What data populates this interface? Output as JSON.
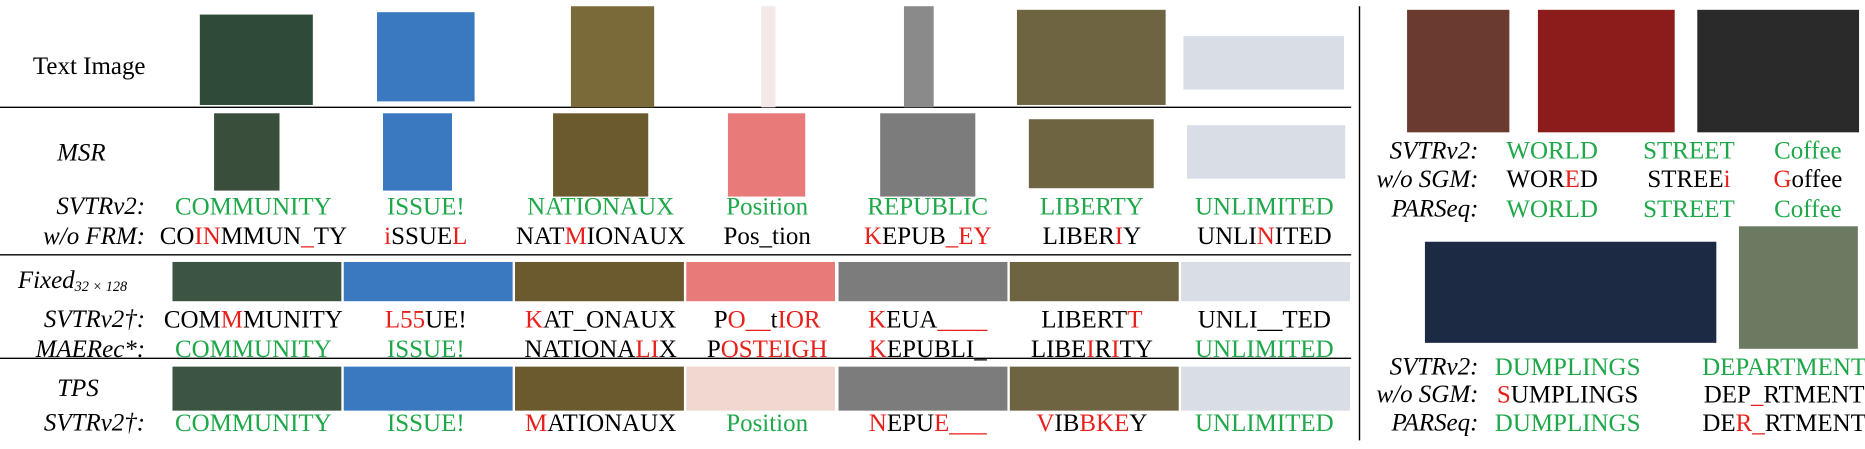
{
  "left": {
    "header_label": "Text Image",
    "sections": [
      {
        "label": "MSR",
        "rows": [
          {
            "label": "SVTRv2:",
            "cells": [
              [
                {
                  "text": "COMMUNITY",
                  "color": "#1fa84a"
                }
              ],
              [
                {
                  "text": "ISSUE!",
                  "color": "#1fa84a"
                }
              ],
              [
                {
                  "text": "NATIONAUX",
                  "color": "#1fa84a"
                }
              ],
              [
                {
                  "text": "Position",
                  "color": "#1fa84a"
                }
              ],
              [
                {
                  "text": "REPUBLIC",
                  "color": "#1fa84a"
                }
              ],
              [
                {
                  "text": "LIBERTY",
                  "color": "#1fa84a"
                }
              ],
              [
                {
                  "text": "UNLIMITED",
                  "color": "#1fa84a"
                }
              ]
            ]
          },
          {
            "label": "w/o FRM:",
            "cells": [
              [
                {
                  "text": "CO"
                },
                {
                  "text": "IN",
                  "color": "#e8201c"
                },
                {
                  "text": "MMUN"
                },
                {
                  "text": "_",
                  "color": "#e8201c"
                },
                {
                  "text": "TY"
                }
              ],
              [
                {
                  "text": "i",
                  "color": "#e8201c"
                },
                {
                  "text": "SSUE"
                },
                {
                  "text": "L",
                  "color": "#e8201c"
                }
              ],
              [
                {
                  "text": "NAT"
                },
                {
                  "text": "M",
                  "color": "#e8201c"
                },
                {
                  "text": "IONAUX"
                }
              ],
              [
                {
                  "text": "Pos_tion"
                }
              ],
              [
                {
                  "text": "K",
                  "color": "#e8201c"
                },
                {
                  "text": "EPUB"
                },
                {
                  "text": "_EY",
                  "color": "#e8201c"
                }
              ],
              [
                {
                  "text": "LIBER"
                },
                {
                  "text": "I",
                  "color": "#e8201c"
                },
                {
                  "text": "Y"
                }
              ],
              [
                {
                  "text": "UNLI"
                },
                {
                  "text": "N",
                  "color": "#e8201c"
                },
                {
                  "text": "ITED"
                }
              ]
            ]
          }
        ]
      },
      {
        "label": {
          "main": "Fixed",
          "sub": "32 × 128"
        },
        "rows": [
          {
            "label": "SVTRv2†:",
            "cells": [
              [
                {
                  "text": "COM"
                },
                {
                  "text": "M",
                  "color": "#e8201c"
                },
                {
                  "text": "MUNITY"
                }
              ],
              [
                {
                  "text": "L55",
                  "color": "#e8201c"
                },
                {
                  "text": "UE!"
                }
              ],
              [
                {
                  "text": "K",
                  "color": "#e8201c"
                },
                {
                  "text": "AT_ONAUX"
                }
              ],
              [
                {
                  "text": "P"
                },
                {
                  "text": "O__",
                  "color": "#e8201c"
                },
                {
                  "text": "t"
                },
                {
                  "text": "IOR",
                  "color": "#e8201c"
                }
              ],
              [
                {
                  "text": "K",
                  "color": "#e8201c"
                },
                {
                  "text": "EUA"
                },
                {
                  "text": "____",
                  "color": "#e8201c"
                }
              ],
              [
                {
                  "text": "LIBERT"
                },
                {
                  "text": "T",
                  "color": "#e8201c"
                }
              ],
              [
                {
                  "text": "UNLI__TED"
                }
              ]
            ]
          },
          {
            "label": "MAERec*:",
            "cells": [
              [
                {
                  "text": "COMMUNITY",
                  "color": "#1fa84a"
                }
              ],
              [
                {
                  "text": "ISSUE!",
                  "color": "#1fa84a"
                }
              ],
              [
                {
                  "text": "NATIONA"
                },
                {
                  "text": "LI",
                  "color": "#e8201c"
                },
                {
                  "text": "X"
                }
              ],
              [
                {
                  "text": "P"
                },
                {
                  "text": "OSTEIGH",
                  "color": "#e8201c"
                }
              ],
              [
                {
                  "text": "K",
                  "color": "#e8201c"
                },
                {
                  "text": "EPUBLI_"
                }
              ],
              [
                {
                  "text": "LIBE"
                },
                {
                  "text": "I",
                  "color": "#e8201c"
                },
                {
                  "text": "R"
                },
                {
                  "text": "I",
                  "color": "#e8201c"
                },
                {
                  "text": "TY"
                }
              ],
              [
                {
                  "text": "UNLIMITED",
                  "color": "#1fa84a"
                }
              ]
            ]
          }
        ]
      },
      {
        "label": "TPS",
        "rows": [
          {
            "label": "SVTRv2†:",
            "cells": [
              [
                {
                  "text": "COMMUNITY",
                  "color": "#1fa84a"
                }
              ],
              [
                {
                  "text": "ISSUE!",
                  "color": "#1fa84a"
                }
              ],
              [
                {
                  "text": "M",
                  "color": "#e8201c"
                },
                {
                  "text": "ATIONAUX"
                }
              ],
              [
                {
                  "text": "Position",
                  "color": "#1fa84a"
                }
              ],
              [
                {
                  "text": "N",
                  "color": "#e8201c"
                },
                {
                  "text": "EPU"
                },
                {
                  "text": "E___",
                  "color": "#e8201c"
                }
              ],
              [
                {
                  "text": "V",
                  "color": "#e8201c"
                },
                {
                  "text": "IB"
                },
                {
                  "text": "BKE",
                  "color": "#e8201c"
                },
                {
                  "text": "Y"
                }
              ],
              [
                {
                  "text": "UNLIMITED",
                  "color": "#1fa84a"
                }
              ]
            ]
          }
        ]
      }
    ]
  },
  "right": {
    "groups": [
      {
        "rows": [
          {
            "label": "SVTRv2:",
            "cells": [
              [
                {
                  "text": "WORLD",
                  "color": "#1fa84a"
                }
              ],
              [
                {
                  "text": "STREET",
                  "color": "#1fa84a"
                }
              ],
              [
                {
                  "text": "Coffee",
                  "color": "#1fa84a"
                }
              ]
            ]
          },
          {
            "label": "w/o SGM:",
            "cells": [
              [
                {
                  "text": "WOR"
                },
                {
                  "text": "E",
                  "color": "#e8201c"
                },
                {
                  "text": "D"
                }
              ],
              [
                {
                  "text": "STREE"
                },
                {
                  "text": "i",
                  "color": "#e8201c"
                }
              ],
              [
                {
                  "text": "G",
                  "color": "#e8201c"
                },
                {
                  "text": "offee"
                }
              ]
            ]
          },
          {
            "label": "PARSeq:",
            "cells": [
              [
                {
                  "text": "WORLD",
                  "color": "#1fa84a"
                }
              ],
              [
                {
                  "text": "STREET",
                  "color": "#1fa84a"
                }
              ],
              [
                {
                  "text": "Coffee",
                  "color": "#1fa84a"
                }
              ]
            ]
          }
        ]
      },
      {
        "rows": [
          {
            "label": "SVTRv2:",
            "cells": [
              [
                {
                  "text": "DUMPLINGS",
                  "color": "#1fa84a"
                }
              ],
              [
                {
                  "text": "DEPARTMENT",
                  "color": "#1fa84a"
                }
              ]
            ]
          },
          {
            "label": "w/o SGM:",
            "cells": [
              [
                {
                  "text": "S",
                  "color": "#e8201c"
                },
                {
                  "text": "UMPLINGS"
                }
              ],
              [
                {
                  "text": "DEP"
                },
                {
                  "text": "_",
                  "color": "#e8201c"
                },
                {
                  "text": "RTMENT"
                }
              ]
            ]
          },
          {
            "label": "PARSeq:",
            "cells": [
              [
                {
                  "text": "DUMPLINGS",
                  "color": "#1fa84a"
                }
              ],
              [
                {
                  "text": "DE"
                },
                {
                  "text": "R_",
                  "color": "#e8201c"
                },
                {
                  "text": "RTMENT"
                }
              ]
            ]
          }
        ]
      }
    ]
  }
}
